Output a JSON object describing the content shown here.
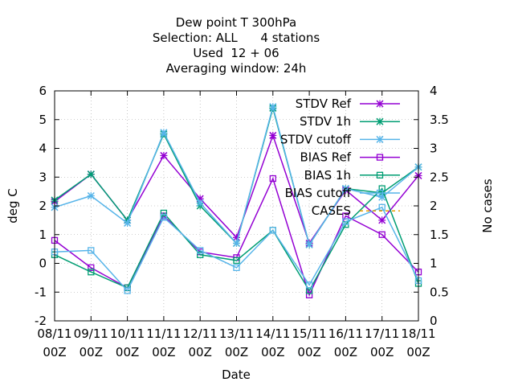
{
  "title_lines": [
    "Dew point T 300hPa",
    "Selection: ALL      4 stations",
    "Used  12 + 06",
    "Averaging window: 24h"
  ],
  "chart_data": {
    "type": "line",
    "title": "Dew point T 300hPa",
    "subtitle": [
      "Selection: ALL      4 stations",
      "Used  12 + 06",
      "Averaging window: 24h"
    ],
    "xlabel": "Date",
    "ylabel": "deg C",
    "y2label": "No cases",
    "ylim": [
      -2,
      6
    ],
    "y2lim": [
      0,
      4
    ],
    "yticks": [
      "-2",
      "-1",
      "0",
      "1",
      "2",
      "3",
      "4",
      "5",
      "6"
    ],
    "y2ticks": [
      "0",
      "0.5",
      "1",
      "1.5",
      "2",
      "2.5",
      "3",
      "3.5",
      "4"
    ],
    "categories": [
      [
        "08/11",
        "00Z"
      ],
      [
        "09/11",
        "00Z"
      ],
      [
        "10/11",
        "00Z"
      ],
      [
        "11/11",
        "00Z"
      ],
      [
        "12/11",
        "00Z"
      ],
      [
        "13/11",
        "00Z"
      ],
      [
        "14/11",
        "00Z"
      ],
      [
        "15/11",
        "00Z"
      ],
      [
        "16/11",
        "00Z"
      ],
      [
        "17/11",
        "00Z"
      ],
      [
        "18/11",
        "00Z"
      ]
    ],
    "legend_position": "top-right",
    "grid": true,
    "series": [
      {
        "name": "STDV Ref",
        "color": "#9400d3",
        "marker": "x",
        "values": [
          2.15,
          3.1,
          1.5,
          3.75,
          2.25,
          0.9,
          4.45,
          0.7,
          2.55,
          1.5,
          3.05
        ]
      },
      {
        "name": "STDV 1h",
        "color": "#009e73",
        "marker": "x",
        "values": [
          2.2,
          3.1,
          1.5,
          4.5,
          2.0,
          0.7,
          5.4,
          0.65,
          2.6,
          2.45,
          3.35
        ]
      },
      {
        "name": "STDV cutoff",
        "color": "#56b4e9",
        "marker": "x",
        "values": [
          1.95,
          2.35,
          1.4,
          4.55,
          2.1,
          0.7,
          5.45,
          0.65,
          2.6,
          2.3,
          3.35
        ]
      },
      {
        "name": "BIAS Ref",
        "color": "#9400d3",
        "marker": "square",
        "values": [
          0.8,
          -0.15,
          -0.85,
          1.65,
          0.4,
          0.2,
          2.95,
          -1.1,
          1.65,
          1.0,
          -0.3
        ]
      },
      {
        "name": "BIAS 1h",
        "color": "#009e73",
        "marker": "square",
        "values": [
          0.3,
          -0.3,
          -0.85,
          1.75,
          0.3,
          0.1,
          1.15,
          -0.95,
          1.35,
          2.6,
          -0.7
        ]
      },
      {
        "name": "BIAS cutoff",
        "color": "#56b4e9",
        "marker": "square",
        "values": [
          0.4,
          0.45,
          -0.95,
          1.6,
          0.45,
          -0.15,
          1.15,
          -0.75,
          1.45,
          1.95,
          -0.6
        ]
      }
    ],
    "cases": {
      "name": "CASES",
      "color": "#e69f00",
      "values": []
    }
  }
}
